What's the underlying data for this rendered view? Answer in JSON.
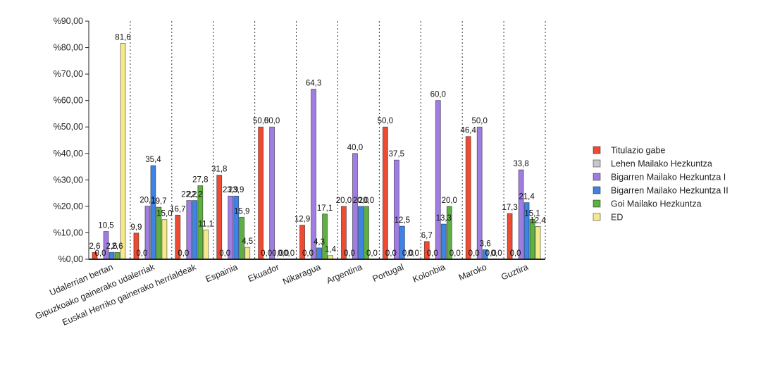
{
  "chart_data": {
    "type": "bar",
    "categories": [
      "Udalerrian bertan",
      "Gipuzkoako gainerako udalerriak",
      "Euskal Herriko gainerako herrialdeak",
      "Espainia",
      "Ekuador",
      "Nikaragua",
      "Argentina",
      "Portugal",
      "Kolonbia",
      "Maroko",
      "Guztira"
    ],
    "series": [
      {
        "name": "Titulazio gabe",
        "color": "#ee4b32",
        "values": [
          2.6,
          9.9,
          16.7,
          31.8,
          50.0,
          12.9,
          20.0,
          50.0,
          6.7,
          46.4,
          17.3
        ],
        "labels": [
          "2,6",
          "9,9",
          "16,7",
          "31,8",
          "50,0",
          "12,9",
          "20,0",
          "50,0",
          "6,7",
          "46,4",
          "17,3"
        ]
      },
      {
        "name": "Lehen Mailako Hezkuntza",
        "color": "#c8c8c8",
        "values": [
          0,
          0,
          0,
          0,
          0,
          0,
          0,
          0,
          0,
          0,
          0
        ],
        "labels": [
          "0,0",
          "0,0",
          "0,0",
          "0,0",
          "0,0",
          "0,0",
          "0,0",
          "0,0",
          "0,0",
          "0,0",
          "0,0"
        ]
      },
      {
        "name": "Bigarren Mailako Hezkuntza I",
        "color": "#a07de2",
        "values": [
          10.5,
          20.1,
          22.2,
          23.9,
          50.0,
          64.3,
          40.0,
          37.5,
          60.0,
          50.0,
          33.8
        ],
        "labels": [
          "10,5",
          "20,1",
          "22,2",
          "23,9",
          "50,0",
          "64,3",
          "40,0",
          "37,5",
          "60,0",
          "50,0",
          "33,8"
        ]
      },
      {
        "name": "Bigarren Mailako Hezkuntza II",
        "color": "#3f84e4",
        "values": [
          2.6,
          35.4,
          22.2,
          23.9,
          0.0,
          4.3,
          20.0,
          12.5,
          13.3,
          3.6,
          21.4
        ],
        "labels": [
          "2,6",
          "35,4",
          "22,2",
          "23,9",
          "0,0",
          "4,3",
          "20,0",
          "12,5",
          "13,3",
          "3,6",
          "21,4"
        ]
      },
      {
        "name": "Goi Mailako Hezkuntza",
        "color": "#5fb043",
        "values": [
          2.6,
          19.7,
          27.8,
          15.9,
          0.0,
          17.1,
          20.0,
          0.0,
          20.0,
          0.0,
          15.1
        ],
        "labels": [
          "2,6",
          "19,7",
          "27,8",
          "15,9",
          "0,0",
          "17,1",
          "20,0",
          "0,0",
          "20,0",
          "0,0",
          "15,1"
        ]
      },
      {
        "name": "ED",
        "color": "#f5e98b",
        "values": [
          81.6,
          15.0,
          11.1,
          4.5,
          0.0,
          1.4,
          0.0,
          0.0,
          0.0,
          0.0,
          12.4
        ],
        "labels": [
          "81,6",
          "15,0",
          "11,1",
          "4,5",
          "0,0",
          "1,4",
          "0,0",
          "0,0",
          "0,0",
          "0,0",
          "12,4"
        ]
      }
    ],
    "yticks": [
      "%0,00",
      "%10,00",
      "%20,00",
      "%30,00",
      "%40,00",
      "%50,00",
      "%60,00",
      "%70,00",
      "%80,00",
      "%90,00"
    ],
    "ylim": [
      0,
      90
    ],
    "grid": "vertical-dotted",
    "legend_position": "right"
  }
}
